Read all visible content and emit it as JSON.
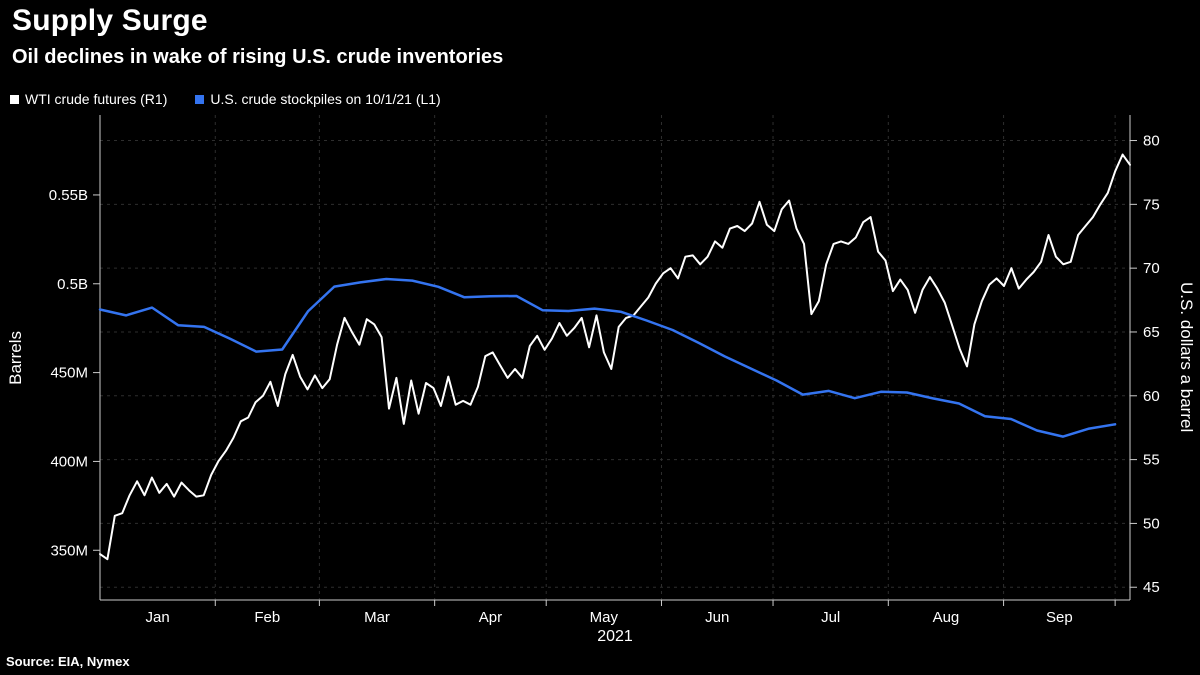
{
  "header": {
    "title": "Supply Surge",
    "subtitle": "Oil declines in wake of rising U.S. crude inventories"
  },
  "legend": [
    {
      "label": "WTI crude futures (R1)",
      "color": "#ffffff"
    },
    {
      "label": "U.S. crude stockpiles on 10/1/21 (L1)",
      "color": "#3474f0"
    }
  ],
  "source": "Source: EIA, Nymex",
  "chart_data": {
    "type": "line",
    "title": "Supply Surge",
    "subtitle": "Oil declines in wake of rising U.S. crude inventories",
    "background": "#000000",
    "grid": {
      "color": "#2e2e2e",
      "dash": true
    },
    "layout": {
      "l": 100,
      "r": 1130,
      "t": 115,
      "b": 600
    },
    "x_axis": {
      "label": "2021",
      "tick_labels": [
        "Jan",
        "Feb",
        "Mar",
        "Apr",
        "May",
        "Jun",
        "Jul",
        "Aug",
        "Sep"
      ],
      "month_starts": [
        0,
        31,
        59,
        90,
        120,
        151,
        181,
        212,
        243,
        273
      ],
      "span_days": [
        0,
        277
      ]
    },
    "left_axis": {
      "label": "Barrels",
      "units": "millions of barrels",
      "range": [
        322,
        595
      ],
      "ticks": [
        {
          "value": 350,
          "label": "350M"
        },
        {
          "value": 400,
          "label": "400M"
        },
        {
          "value": 450,
          "label": "450M"
        },
        {
          "value": 500,
          "label": "0.5B"
        },
        {
          "value": 550,
          "label": "0.55B"
        }
      ]
    },
    "right_axis": {
      "label": "U.S. dollars a barrel",
      "units": "USD per barrel",
      "range": [
        44,
        82
      ],
      "ticks": [
        45,
        50,
        55,
        60,
        65,
        70,
        75,
        80
      ]
    },
    "series": [
      {
        "name": "WTI crude futures (R1)",
        "axis": "right",
        "color": "#ffffff",
        "width": 2,
        "x_mode": "even",
        "values": [
          47.6,
          47.2,
          50.6,
          50.8,
          52.2,
          53.3,
          52.2,
          53.6,
          52.4,
          53.1,
          52.1,
          53.2,
          52.6,
          52.1,
          52.2,
          53.8,
          54.9,
          55.7,
          56.7,
          58.0,
          58.3,
          59.5,
          60.0,
          61.1,
          59.2,
          61.7,
          63.2,
          61.5,
          60.5,
          61.6,
          60.6,
          61.3,
          64.0,
          66.1,
          65.0,
          64.0,
          66.0,
          65.6,
          64.6,
          59.0,
          61.4,
          57.8,
          61.2,
          58.6,
          61.0,
          60.6,
          59.2,
          61.5,
          59.3,
          59.6,
          59.3,
          60.7,
          63.1,
          63.4,
          62.4,
          61.4,
          62.1,
          61.4,
          63.9,
          64.7,
          63.6,
          64.5,
          65.7,
          64.7,
          65.3,
          66.1,
          63.8,
          66.3,
          63.4,
          62.1,
          65.4,
          66.1,
          66.3,
          67.0,
          67.7,
          68.8,
          69.6,
          70.0,
          69.2,
          70.9,
          71.0,
          70.3,
          70.9,
          72.1,
          71.6,
          73.1,
          73.3,
          72.9,
          73.5,
          75.2,
          73.4,
          72.9,
          74.6,
          75.3,
          73.1,
          71.9,
          66.4,
          67.4,
          70.3,
          71.9,
          72.1,
          71.9,
          72.4,
          73.6,
          74.0,
          71.3,
          70.6,
          68.2,
          69.1,
          68.3,
          66.5,
          68.3,
          69.3,
          68.4,
          67.3,
          65.5,
          63.7,
          62.3,
          65.6,
          67.4,
          68.7,
          69.2,
          68.6,
          70.0,
          68.4,
          69.1,
          69.7,
          70.5,
          72.6,
          70.9,
          70.3,
          70.5,
          72.6,
          73.3,
          74.0,
          75.0,
          75.9,
          77.6,
          78.9,
          78.1
        ]
      },
      {
        "name": "U.S. crude stockpiles on 10/1/21 (L1)",
        "axis": "left",
        "color": "#3474f0",
        "width": 2.5,
        "x_days": [
          0,
          7,
          14,
          21,
          28,
          35,
          42,
          49,
          56,
          63,
          70,
          77,
          84,
          91,
          98,
          105,
          112,
          119,
          126,
          133,
          140,
          147,
          154,
          161,
          168,
          175,
          182,
          189,
          196,
          203,
          210,
          217,
          224,
          231,
          238,
          245,
          252,
          259,
          266,
          273
        ],
        "values": [
          485.5,
          482.2,
          486.6,
          476.7,
          475.7,
          469.0,
          461.8,
          463.0,
          484.6,
          498.4,
          500.8,
          502.7,
          501.8,
          498.3,
          492.4,
          493.0,
          493.1,
          485.1,
          484.7,
          486.0,
          484.3,
          479.3,
          474.0,
          466.7,
          459.1,
          452.3,
          445.5,
          437.6,
          439.7,
          435.6,
          439.2,
          438.8,
          435.5,
          432.6,
          425.4,
          423.9,
          417.4,
          414.0,
          418.5,
          420.9
        ]
      }
    ]
  }
}
